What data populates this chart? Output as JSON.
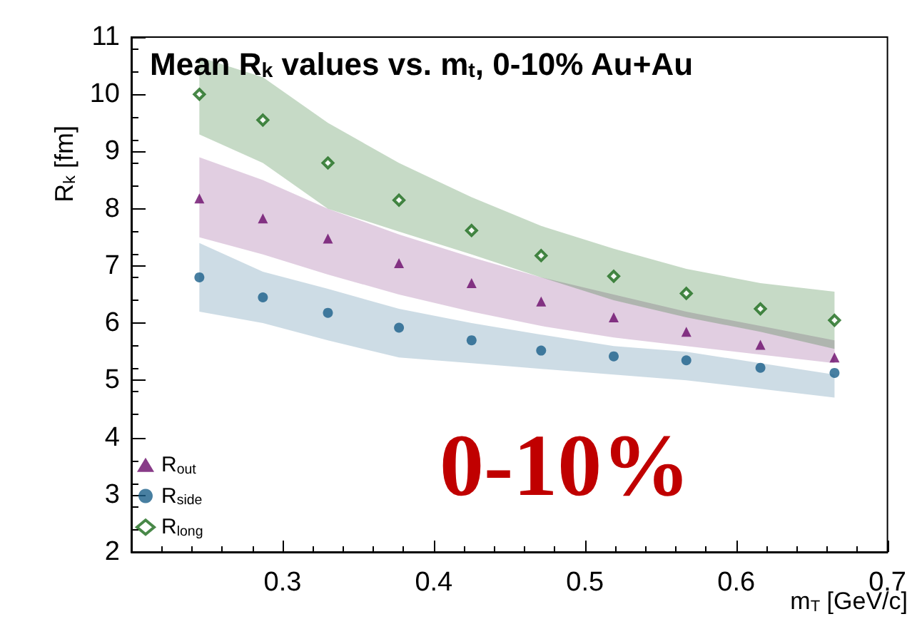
{
  "chart_data": {
    "type": "scatter",
    "title": "Mean R$_{k}$ values vs. m$_{t}$, 0-10% Au+Au",
    "xlabel": "m$_{T}$ [GeV/c]",
    "ylabel": "R$_{k}$ [fm]",
    "x": [
      0.245,
      0.287,
      0.33,
      0.377,
      0.425,
      0.471,
      0.519,
      0.567,
      0.616,
      0.665
    ],
    "series": [
      {
        "name": "R$_{out}$",
        "color": "#6a0a6a",
        "marker": "triangle",
        "values": [
          8.18,
          7.83,
          7.48,
          7.05,
          6.7,
          6.38,
          6.1,
          5.85,
          5.62,
          5.4
        ],
        "lower": [
          7.5,
          7.2,
          6.85,
          6.5,
          6.2,
          5.95,
          5.75,
          5.6,
          5.45,
          5.3
        ],
        "upper": [
          8.9,
          8.5,
          8.0,
          7.55,
          7.15,
          6.8,
          6.5,
          6.2,
          5.95,
          5.7
        ]
      },
      {
        "name": "R$_{side}$",
        "color": "#1a5f8a",
        "marker": "circle",
        "values": [
          6.8,
          6.45,
          6.18,
          5.92,
          5.7,
          5.52,
          5.42,
          5.35,
          5.22,
          5.13
        ],
        "lower": [
          6.2,
          6.0,
          5.7,
          5.4,
          5.3,
          5.2,
          5.1,
          5.0,
          4.85,
          4.7
        ],
        "upper": [
          7.4,
          6.9,
          6.6,
          6.25,
          6.0,
          5.8,
          5.6,
          5.5,
          5.3,
          5.1
        ]
      },
      {
        "name": "R$_{long}$",
        "color": "#1a6a1a",
        "marker": "diamond",
        "values": [
          10.0,
          9.55,
          8.8,
          8.15,
          7.62,
          7.18,
          6.82,
          6.52,
          6.25,
          6.05
        ],
        "lower": [
          9.3,
          8.8,
          8.0,
          7.6,
          7.2,
          6.8,
          6.4,
          6.1,
          5.85,
          5.55
        ],
        "upper": [
          10.65,
          10.3,
          9.5,
          8.8,
          8.2,
          7.7,
          7.3,
          6.95,
          6.7,
          6.55
        ]
      }
    ],
    "annotations": [
      "0-10%"
    ],
    "xlim": [
      0.2,
      0.7
    ],
    "xticks": [
      0.3,
      0.4,
      0.5,
      0.6,
      0.7
    ],
    "ylim": [
      2,
      11
    ],
    "yticks": [
      2,
      3,
      4,
      5,
      6,
      7,
      8,
      9,
      10,
      11
    ],
    "grid": false,
    "legend": "bottom left"
  }
}
